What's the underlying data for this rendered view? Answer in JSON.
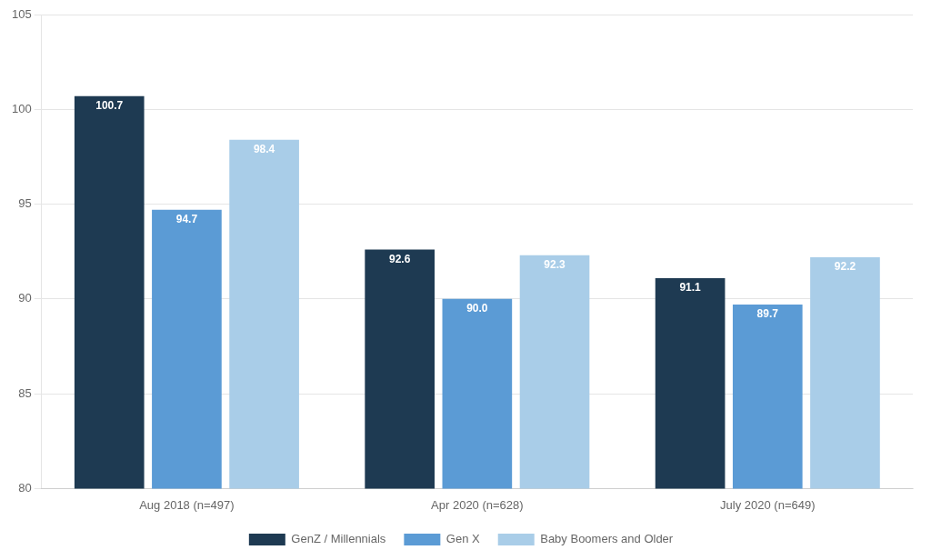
{
  "chart_data": {
    "type": "bar",
    "categories": [
      "Aug 2018 (n=497)",
      "Apr 2020 (n=628)",
      "July 2020 (n=649)"
    ],
    "series": [
      {
        "name": "GenZ / Millennials",
        "color": "#1e3a52",
        "values": [
          100.7,
          92.6,
          91.1
        ],
        "value_labels": [
          "100.7",
          "92.6",
          "91.1"
        ]
      },
      {
        "name": "Gen X",
        "color": "#5b9bd5",
        "values": [
          94.7,
          90.0,
          89.7
        ],
        "value_labels": [
          "94.7",
          "90.0",
          "89.7"
        ]
      },
      {
        "name": "Baby Boomers and Older",
        "color": "#a9cde8",
        "values": [
          98.4,
          92.3,
          92.2
        ],
        "value_labels": [
          "98.4",
          "92.3",
          "92.2"
        ]
      }
    ],
    "ylim": [
      80,
      105
    ],
    "yticks": [
      80,
      85,
      90,
      95,
      100,
      105
    ],
    "grid": true,
    "legend": "bottom",
    "data_labels": true
  }
}
